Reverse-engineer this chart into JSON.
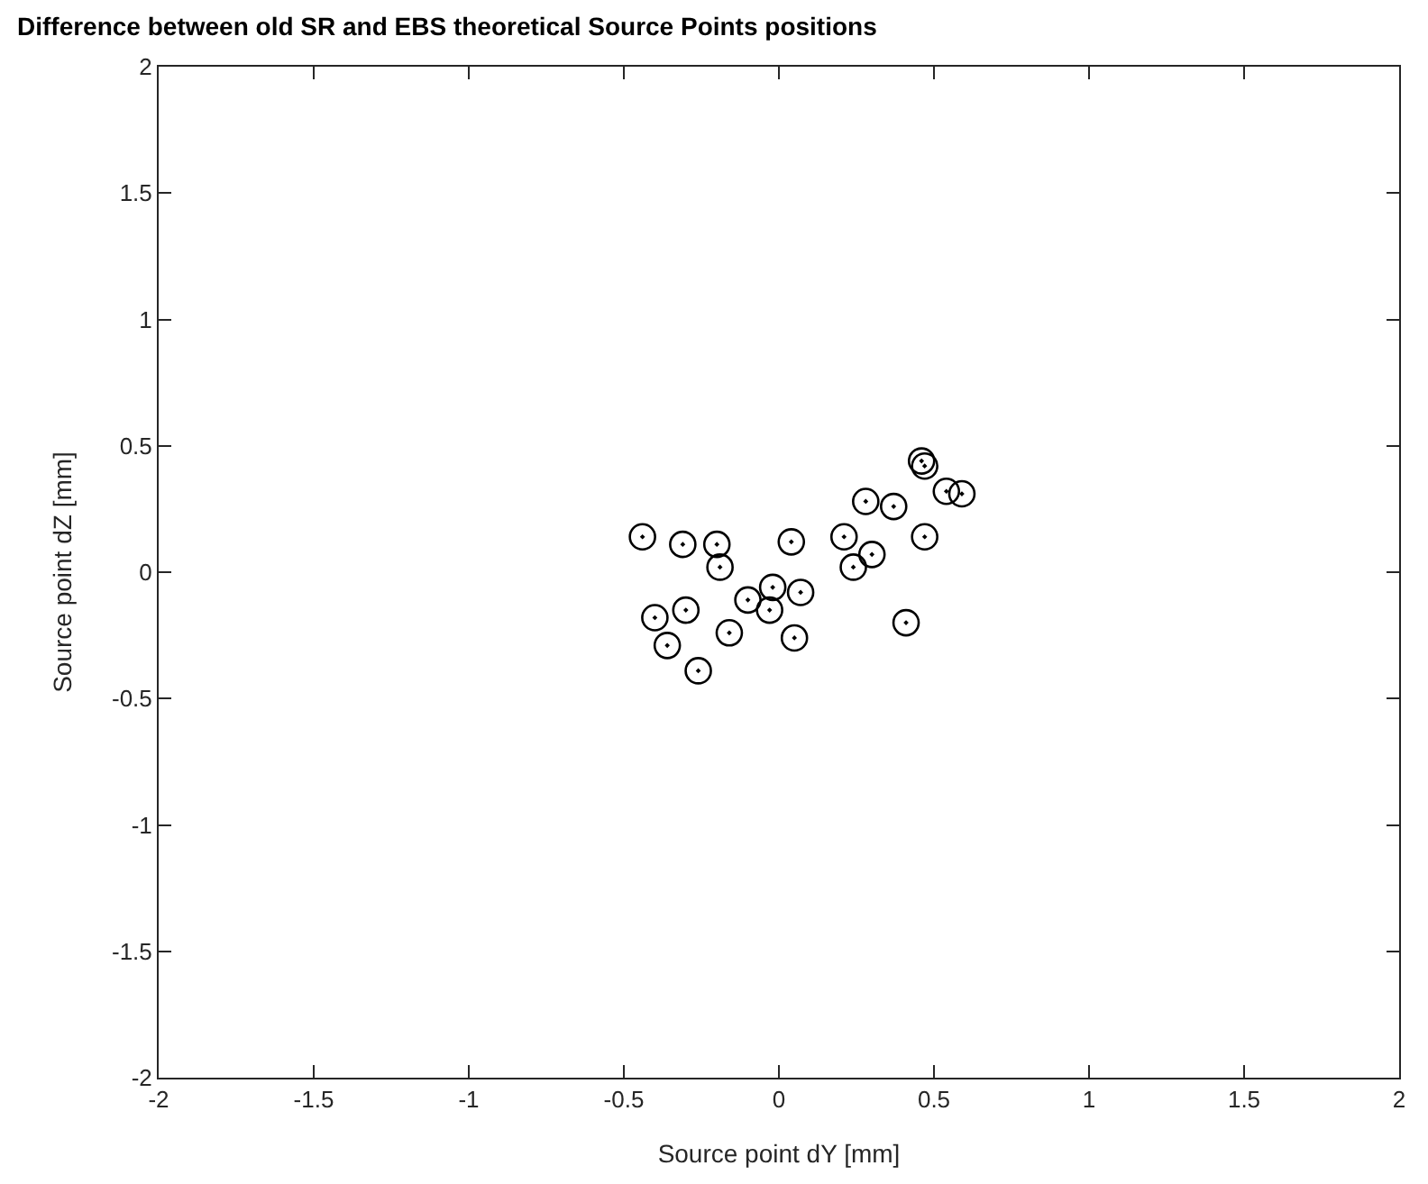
{
  "chart_data": {
    "type": "scatter",
    "title": "Difference between old SR and EBS theoretical Source Points positions",
    "xlabel": "Source point dY [mm]",
    "ylabel": "Source point dZ [mm]",
    "x": [
      -0.44,
      -0.31,
      -0.2,
      -0.19,
      0.04,
      0.21,
      0.3,
      0.24,
      0.28,
      0.37,
      0.46,
      0.47,
      0.54,
      0.59,
      0.47,
      0.41,
      -0.4,
      -0.3,
      -0.36,
      -0.26,
      -0.16,
      -0.1,
      -0.02,
      -0.03,
      0.07,
      0.05
    ],
    "series": [
      {
        "color": "#000000",
        "values": [
          0.14,
          0.11,
          0.11,
          0.02,
          0.12,
          0.14,
          0.07,
          0.02,
          0.28,
          0.26,
          0.44,
          0.42,
          0.32,
          0.31,
          0.14,
          -0.2,
          -0.18,
          -0.15,
          -0.29,
          -0.39,
          -0.24,
          -0.11,
          -0.06,
          -0.15,
          -0.08,
          -0.26
        ]
      }
    ],
    "xlim": [
      -2,
      2
    ],
    "ylim": [
      -2,
      2
    ],
    "xticks": [
      -2,
      -1.5,
      -1,
      -0.5,
      0,
      0.5,
      1,
      1.5,
      2
    ],
    "yticks": [
      -2,
      -1.5,
      -1,
      -0.5,
      0,
      0.5,
      1,
      1.5,
      2
    ],
    "marker": "circle",
    "grid": false
  }
}
